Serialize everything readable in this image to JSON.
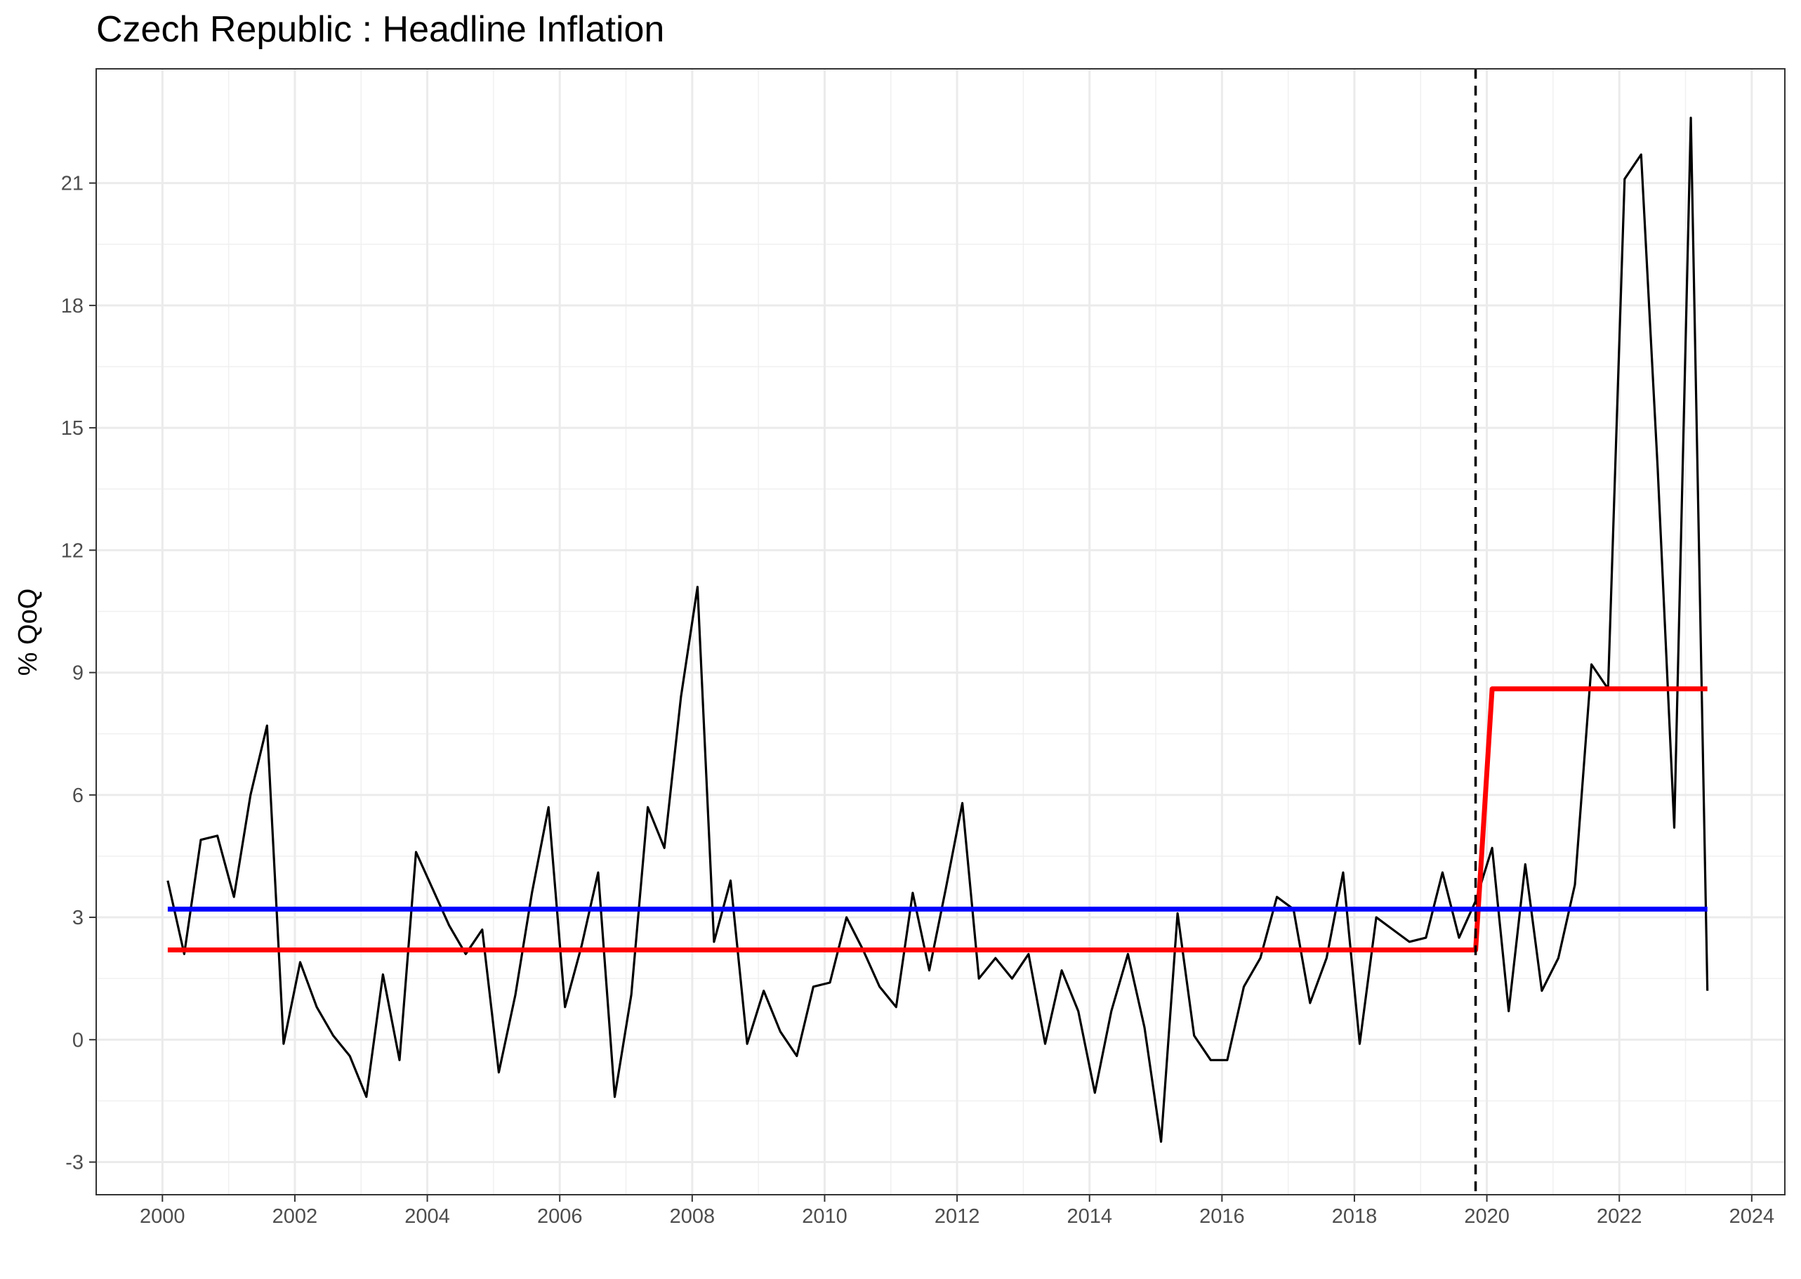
{
  "chart_data": {
    "type": "line",
    "title": "Czech Republic : Headline Inflation",
    "xlabel": "",
    "ylabel": "% QoQ",
    "xlim": [
      1999,
      2024.5
    ],
    "ylim": [
      -3.8,
      23.8
    ],
    "x_ticks": [
      2000,
      2002,
      2004,
      2006,
      2008,
      2010,
      2012,
      2014,
      2016,
      2018,
      2020,
      2022,
      2024
    ],
    "x_tick_labels": [
      "2000",
      "2002",
      "2004",
      "2006",
      "2008",
      "2010",
      "2012",
      "2014",
      "2016",
      "2018",
      "2020",
      "2022",
      "2024"
    ],
    "y_ticks": [
      -3,
      0,
      3,
      6,
      9,
      12,
      15,
      18,
      21
    ],
    "y_tick_labels": [
      "-3",
      "0",
      "3",
      "6",
      "9",
      "12",
      "15",
      "18",
      "21"
    ],
    "grid": true,
    "legend": "none",
    "break_line": {
      "x": 2019.83,
      "style": "dashed",
      "color": "#000000"
    },
    "series": [
      {
        "color": "#000000",
        "x": [
          2000.08,
          2000.33,
          2000.58,
          2000.83,
          2001.08,
          2001.33,
          2001.58,
          2001.83,
          2002.08,
          2002.33,
          2002.58,
          2002.83,
          2003.08,
          2003.33,
          2003.58,
          2003.83,
          2004.08,
          2004.33,
          2004.58,
          2004.83,
          2005.08,
          2005.33,
          2005.58,
          2005.83,
          2006.08,
          2006.33,
          2006.58,
          2006.83,
          2007.08,
          2007.33,
          2007.58,
          2007.83,
          2008.08,
          2008.33,
          2008.58,
          2008.83,
          2009.08,
          2009.33,
          2009.58,
          2009.83,
          2010.08,
          2010.33,
          2010.58,
          2010.83,
          2011.08,
          2011.33,
          2011.58,
          2011.83,
          2012.08,
          2012.33,
          2012.58,
          2012.83,
          2013.08,
          2013.33,
          2013.58,
          2013.83,
          2014.08,
          2014.33,
          2014.58,
          2014.83,
          2015.08,
          2015.33,
          2015.58,
          2015.83,
          2016.08,
          2016.33,
          2016.58,
          2016.83,
          2017.08,
          2017.33,
          2017.58,
          2017.83,
          2018.08,
          2018.33,
          2018.58,
          2018.83,
          2019.08,
          2019.33,
          2019.58,
          2019.83,
          2020.08,
          2020.33,
          2020.58,
          2020.83,
          2021.08,
          2021.33,
          2021.58,
          2021.83,
          2022.08,
          2022.33,
          2022.58,
          2022.83,
          2023.08,
          2023.33
        ],
        "y": [
          3.9,
          2.1,
          4.9,
          5.0,
          3.5,
          6.0,
          7.7,
          -0.1,
          1.9,
          0.8,
          0.1,
          -0.4,
          -1.4,
          1.6,
          -0.5,
          4.6,
          3.7,
          2.8,
          2.1,
          2.7,
          -0.8,
          1.1,
          3.6,
          5.7,
          0.8,
          2.3,
          4.1,
          -1.4,
          1.1,
          5.7,
          4.7,
          8.4,
          11.1,
          2.4,
          3.9,
          -0.1,
          1.2,
          0.2,
          -0.4,
          1.3,
          1.4,
          3.0,
          2.2,
          1.3,
          0.8,
          3.6,
          1.7,
          3.7,
          5.8,
          1.5,
          2.0,
          1.5,
          2.1,
          -0.1,
          1.7,
          0.7,
          -1.3,
          0.7,
          2.1,
          0.3,
          -2.5,
          3.1,
          0.1,
          -0.5,
          -0.5,
          1.3,
          2.0,
          3.5,
          3.2,
          0.9,
          2.0,
          4.1,
          -0.1,
          3.0,
          2.7,
          2.4,
          2.5,
          4.1,
          2.5,
          3.4,
          4.7,
          0.7,
          4.3,
          1.2,
          2.0,
          3.8,
          9.2,
          8.6,
          21.1,
          21.7,
          14.0,
          5.2,
          22.6,
          1.2
        ]
      },
      {
        "color": "#ff0000",
        "x": [
          2000.08,
          2019.83,
          2020.08,
          2023.33
        ],
        "y": [
          2.2,
          2.2,
          8.6,
          8.6
        ]
      },
      {
        "color": "#0000ff",
        "x": [
          2000.08,
          2023.33
        ],
        "y": [
          3.2,
          3.2
        ]
      }
    ]
  }
}
